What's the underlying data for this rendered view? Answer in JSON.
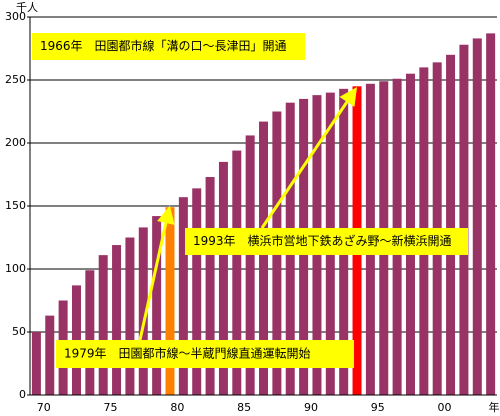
{
  "chart_data": {
    "type": "bar",
    "y_label": "千人",
    "x_label": "年",
    "categories": [
      null,
      "70",
      null,
      null,
      null,
      null,
      "75",
      null,
      null,
      null,
      null,
      "80",
      null,
      null,
      null,
      null,
      "85",
      null,
      null,
      null,
      null,
      "90",
      null,
      null,
      null,
      null,
      "95",
      null,
      null,
      null,
      null,
      "00",
      null,
      null,
      null
    ],
    "values": [
      50,
      63,
      75,
      87,
      99,
      111,
      119,
      125,
      133,
      142,
      149,
      157,
      164,
      173,
      185,
      194,
      206,
      217,
      225,
      232,
      235,
      238,
      240,
      243,
      245,
      247,
      249,
      251,
      255,
      260,
      264,
      270,
      278,
      283,
      287
    ],
    "colors": [
      "#993366",
      "#993366",
      "#993366",
      "#993366",
      "#993366",
      "#993366",
      "#993366",
      "#993366",
      "#993366",
      "#993366",
      "#ff8000",
      "#993366",
      "#993366",
      "#993366",
      "#993366",
      "#993366",
      "#993366",
      "#993366",
      "#993366",
      "#993366",
      "#993366",
      "#993366",
      "#993366",
      "#993366",
      "#ff0000",
      "#993366",
      "#993366",
      "#993366",
      "#993366",
      "#993366",
      "#993366",
      "#993366",
      "#993366",
      "#993366",
      "#993366"
    ],
    "ylim": [
      0,
      300
    ],
    "yticks": [
      0,
      50,
      100,
      150,
      200,
      250,
      300
    ],
    "grid": true,
    "annotations": [
      "1966年　田園都市線「溝の口～長津田」開通",
      "1993年　横浜市営地下鉄あざみ野～新横浜開通",
      "1979年　田園都市線～半蔵門線直通運転開始"
    ]
  }
}
